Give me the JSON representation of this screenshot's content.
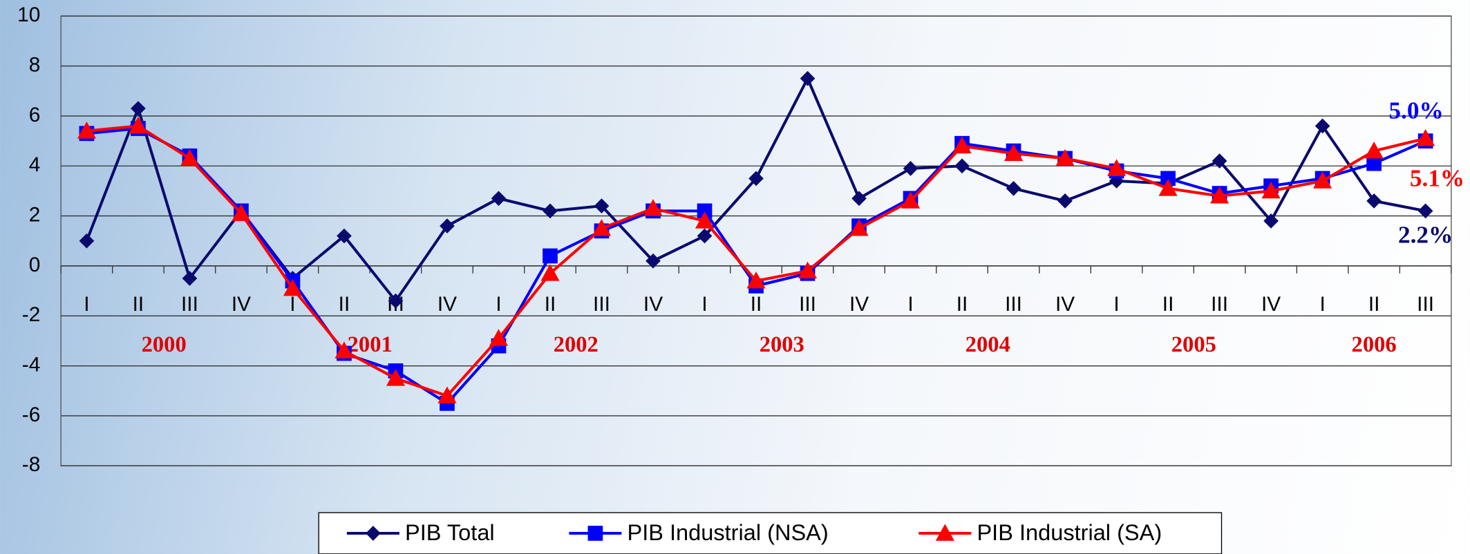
{
  "chart_data": {
    "type": "line",
    "categories": [
      "I",
      "II",
      "III",
      "IV",
      "I",
      "II",
      "III",
      "IV",
      "I",
      "II",
      "III",
      "IV",
      "I",
      "II",
      "III",
      "IV",
      "I",
      "II",
      "III",
      "IV",
      "I",
      "II",
      "III",
      "IV",
      "I",
      "II",
      "III"
    ],
    "years": [
      "2000",
      "2001",
      "2002",
      "2003",
      "2004",
      "2005",
      "2006"
    ],
    "ylim": [
      -8,
      10
    ],
    "yticks": [
      -8,
      -6,
      -4,
      -2,
      0,
      2,
      4,
      6,
      8,
      10
    ],
    "grid": true,
    "legend": "bottom",
    "series": [
      {
        "name": "PIB Total",
        "color": "#0a0a6e",
        "marker": "diamond",
        "values": [
          1.0,
          6.3,
          -0.5,
          2.2,
          -0.5,
          1.2,
          -1.4,
          1.6,
          2.7,
          2.2,
          2.4,
          0.2,
          1.2,
          3.5,
          7.5,
          2.7,
          3.9,
          4.0,
          3.1,
          2.6,
          3.4,
          3.3,
          4.2,
          1.8,
          5.6,
          2.6,
          2.2
        ],
        "value_labels": [
          null,
          null,
          null,
          null,
          null,
          null,
          null,
          null,
          null,
          null,
          null,
          null,
          null,
          null,
          null,
          null,
          null,
          null,
          null,
          null,
          null,
          null,
          null,
          null,
          null,
          null,
          "2.2%"
        ]
      },
      {
        "name": "PIB Industrial (NSA)",
        "color": "#0000ff",
        "marker": "square",
        "values": [
          5.3,
          5.5,
          4.4,
          2.2,
          -0.6,
          -3.5,
          -4.2,
          -5.5,
          -3.2,
          0.4,
          1.4,
          2.2,
          2.2,
          -0.8,
          -0.3,
          1.6,
          2.7,
          4.9,
          4.6,
          4.3,
          3.8,
          3.5,
          2.9,
          3.2,
          3.5,
          4.1,
          5.0
        ],
        "value_labels": [
          null,
          null,
          null,
          null,
          null,
          null,
          null,
          null,
          null,
          null,
          null,
          null,
          null,
          null,
          null,
          null,
          null,
          null,
          null,
          null,
          null,
          null,
          null,
          null,
          null,
          null,
          "5.0%"
        ]
      },
      {
        "name": "PIB Industrial (SA)",
        "color": "#ff0000",
        "marker": "triangle",
        "values": [
          5.4,
          5.6,
          4.3,
          2.1,
          -0.9,
          -3.4,
          -4.5,
          -5.2,
          -2.9,
          -0.3,
          1.5,
          2.3,
          1.8,
          -0.6,
          -0.2,
          1.5,
          2.6,
          4.8,
          4.5,
          4.3,
          3.9,
          3.1,
          2.8,
          3.0,
          3.4,
          4.6,
          5.1
        ],
        "value_labels": [
          null,
          null,
          null,
          null,
          null,
          null,
          null,
          null,
          null,
          null,
          null,
          null,
          null,
          null,
          null,
          null,
          null,
          null,
          null,
          null,
          null,
          null,
          null,
          null,
          null,
          null,
          "5.1%"
        ]
      }
    ]
  }
}
